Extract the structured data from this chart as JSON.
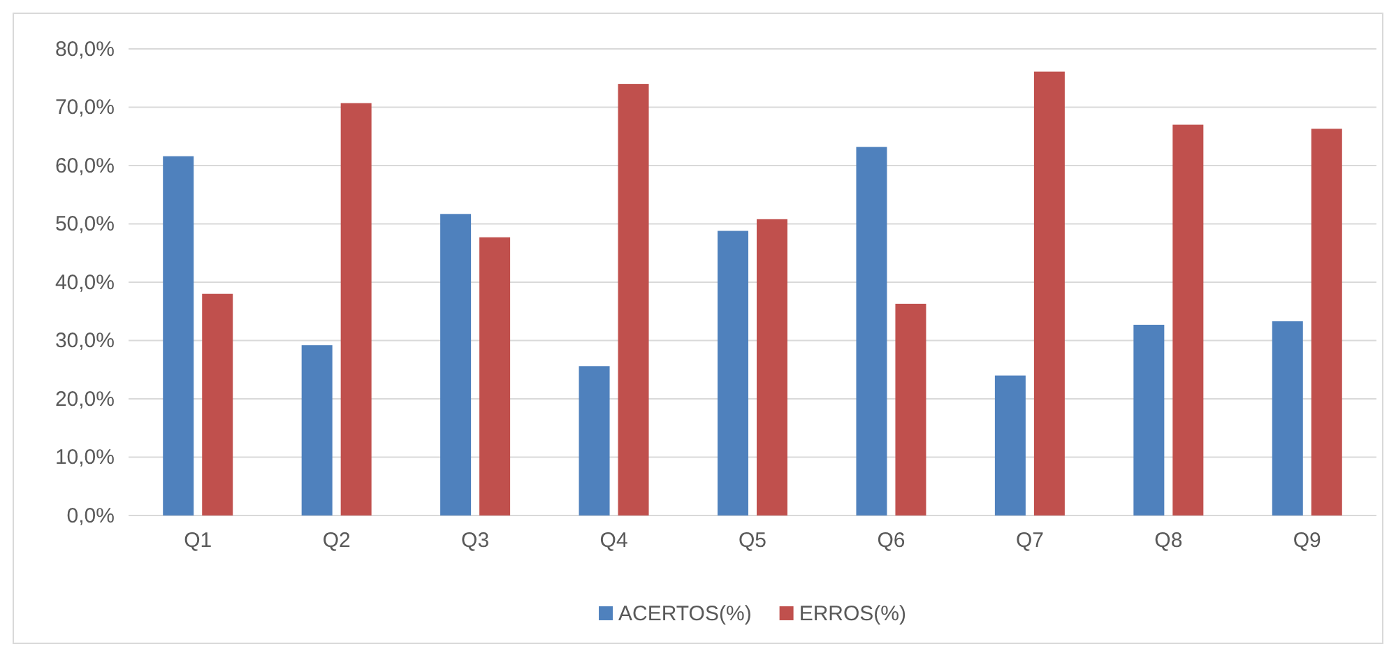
{
  "chart_data": {
    "type": "bar",
    "categories": [
      "Q1",
      "Q2",
      "Q3",
      "Q4",
      "Q5",
      "Q6",
      "Q7",
      "Q8",
      "Q9"
    ],
    "series": [
      {
        "name": "ACERTOS(%)",
        "color": "#4f81bd",
        "values": [
          61.6,
          29.2,
          51.7,
          25.6,
          48.8,
          63.2,
          24.0,
          32.7,
          33.3
        ]
      },
      {
        "name": "ERROS(%)",
        "color": "#c0504d",
        "values": [
          38.0,
          70.7,
          47.7,
          74.0,
          50.8,
          36.3,
          76.1,
          67.0,
          66.3
        ]
      }
    ],
    "ylim": [
      0,
      80
    ],
    "yticks": [
      {
        "value": 0,
        "label": "0,0%"
      },
      {
        "value": 10,
        "label": "10,0%"
      },
      {
        "value": 20,
        "label": "20,0%"
      },
      {
        "value": 30,
        "label": "30,0%"
      },
      {
        "value": 40,
        "label": "40,0%"
      },
      {
        "value": 50,
        "label": "50,0%"
      },
      {
        "value": 60,
        "label": "60,0%"
      },
      {
        "value": 70,
        "label": "70,0%"
      },
      {
        "value": 80,
        "label": "80,0%"
      }
    ],
    "grid": "y",
    "legend": "bottom"
  }
}
